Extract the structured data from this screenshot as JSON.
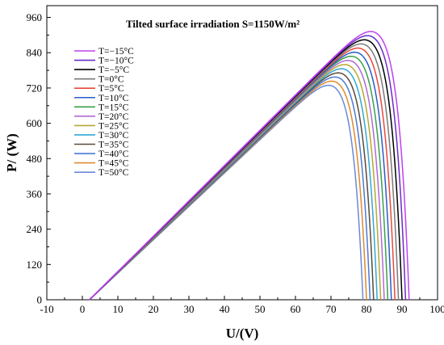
{
  "chart_data": {
    "type": "line",
    "title": "Tilted surface irradiation S=1150W/m²",
    "xlabel": "U/(V)",
    "ylabel": "P/ (W)",
    "xlim": [
      -10,
      100
    ],
    "ylim": [
      0,
      1000
    ],
    "xticks": [
      "-10",
      "0",
      "10",
      "20",
      "30",
      "40",
      "50",
      "60",
      "70",
      "80",
      "90",
      "100"
    ],
    "yticks": [
      "0",
      "120",
      "240",
      "360",
      "480",
      "600",
      "720",
      "840",
      "960"
    ],
    "grid": false,
    "legend_position": "top-left",
    "series": [
      {
        "name": "T=−15°C",
        "color": "#c040f0",
        "vmp": 77.0,
        "pmax": 890,
        "voc": 92.0
      },
      {
        "name": "T=−10°C",
        "color": "#6a2cc8",
        "vmp": 76.1,
        "pmax": 876,
        "voc": 91.0
      },
      {
        "name": "T=−5°C",
        "color": "#000000",
        "vmp": 75.2,
        "pmax": 862,
        "voc": 90.0
      },
      {
        "name": "T=0°C",
        "color": "#7a7a7a",
        "vmp": 74.3,
        "pmax": 848,
        "voc": 89.0
      },
      {
        "name": "T=5°C",
        "color": "#e8483c",
        "vmp": 73.4,
        "pmax": 834,
        "voc": 88.0
      },
      {
        "name": "T=10°C",
        "color": "#2a5cc8",
        "vmp": 72.5,
        "pmax": 820,
        "voc": 87.0
      },
      {
        "name": "T=15°C",
        "color": "#3aa04a",
        "vmp": 71.5,
        "pmax": 806,
        "voc": 86.0
      },
      {
        "name": "T=20°C",
        "color": "#b06ad8",
        "vmp": 70.6,
        "pmax": 792,
        "voc": 85.0
      },
      {
        "name": "T=25°C",
        "color": "#b8a830",
        "vmp": 69.7,
        "pmax": 778,
        "voc": 84.0
      },
      {
        "name": "T=30°C",
        "color": "#30a8d8",
        "vmp": 68.8,
        "pmax": 764,
        "voc": 83.0
      },
      {
        "name": "T=35°C",
        "color": "#5a4a3a",
        "vmp": 67.9,
        "pmax": 750,
        "voc": 82.0
      },
      {
        "name": "T=40°C",
        "color": "#4a7ad8",
        "vmp": 67.0,
        "pmax": 736,
        "voc": 81.0
      },
      {
        "name": "T=45°C",
        "color": "#e08a2a",
        "vmp": 66.1,
        "pmax": 722,
        "voc": 80.0
      },
      {
        "name": "T=50°C",
        "color": "#6a8ad8",
        "vmp": 65.2,
        "pmax": 708,
        "voc": 79.0
      }
    ]
  }
}
